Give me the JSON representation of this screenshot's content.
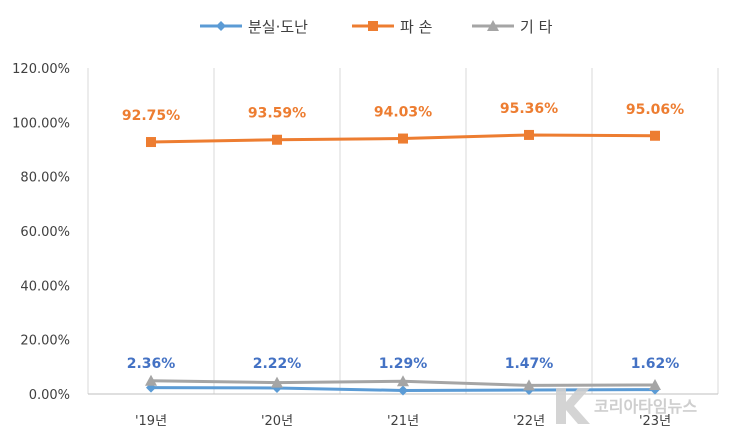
{
  "chart_data": {
    "type": "line",
    "title": "",
    "xlabel": "",
    "ylabel": "",
    "categories": [
      "'19년",
      "'20년",
      "'21년",
      "'22년",
      "'23년"
    ],
    "ylim": [
      0,
      120
    ],
    "yticks": [
      "0.00%",
      "20.00%",
      "40.00%",
      "60.00%",
      "80.00%",
      "100.00%",
      "120.00%"
    ],
    "grid": "vertical",
    "legend_position": "top",
    "series": [
      {
        "name": "분실·도난",
        "color": "#5b9bd5",
        "marker": "diamond",
        "values": [
          2.36,
          2.22,
          1.29,
          1.47,
          1.62
        ],
        "labels": [
          "2.36%",
          "2.22%",
          "1.29%",
          "1.47%",
          "1.62%"
        ],
        "label_color": "#4472c4"
      },
      {
        "name": "파 손",
        "color": "#ed7d31",
        "marker": "square",
        "values": [
          92.75,
          93.59,
          94.03,
          95.36,
          95.06
        ],
        "labels": [
          "92.75%",
          "93.59%",
          "94.03%",
          "95.36%",
          "95.06%"
        ],
        "label_color": "#ed7d31"
      },
      {
        "name": "기 타",
        "color": "#a5a5a5",
        "marker": "triangle",
        "values": [
          4.89,
          4.19,
          4.68,
          3.17,
          3.32
        ],
        "labels": []
      }
    ]
  },
  "watermark": {
    "text": "코리아타임뉴스",
    "icon": "k-logo-icon"
  }
}
